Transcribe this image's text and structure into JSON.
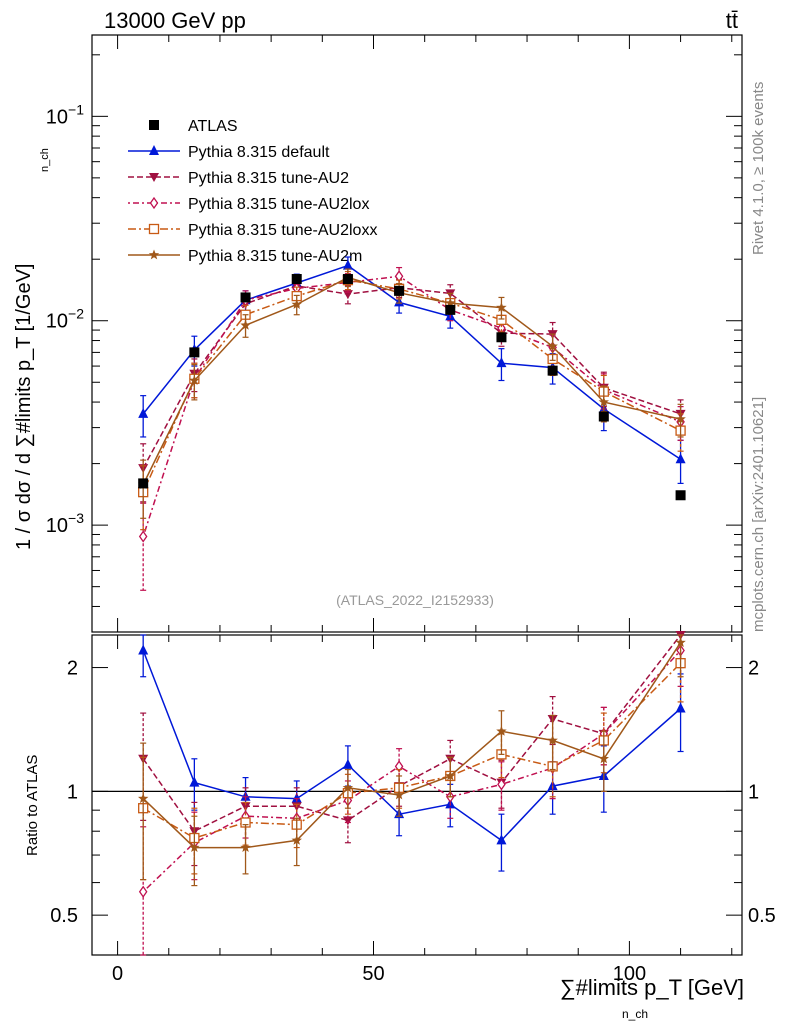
{
  "header": {
    "energy_label": "13000 GeV pp",
    "process_label": "tt̄"
  },
  "side_labels": {
    "rivet": "Rivet 4.1.0, ≥ 100k events",
    "mcplots": "mcplots.cern.ch [arXiv:2401.10621]"
  },
  "analysis_label": "(ATLAS_2022_I2152933)",
  "chart_data": {
    "type": "line",
    "title": "",
    "ylabel_main": "1 / σ dσ / d ∑#limits p_T [1/GeV]",
    "ylabel_ratio": "Ratio to ATLAS",
    "xlabel": "∑#limits p_T [GeV]",
    "xlabel_sub": "n_ch",
    "ylabel_sub": "n_ch",
    "xlim": [
      -5,
      122
    ],
    "ylim_main": [
      0.0003,
      0.25
    ],
    "ylim_ratio": [
      0.4,
      2.4
    ],
    "yscale_main": "log",
    "x_ticks": [
      0,
      50,
      100
    ],
    "x_tick_labels": [
      "0",
      "50",
      "100"
    ],
    "y_main_ticks": [
      0.001,
      0.01,
      0.1
    ],
    "y_main_tick_labels": [
      "10−3",
      "10−2",
      "10−1"
    ],
    "y_ratio_ticks": [
      0.5,
      1,
      2
    ],
    "y_ratio_tick_labels": [
      "0.5",
      "1",
      "2"
    ],
    "x": [
      5,
      15,
      25,
      35,
      45,
      55,
      65,
      75,
      85,
      95,
      110
    ],
    "legend_position": "top-left",
    "data": {
      "name": "ATLAS",
      "values": [
        0.0016,
        0.007,
        0.013,
        0.016,
        0.016,
        0.014,
        0.0113,
        0.0083,
        0.0057,
        0.0034,
        0.0014
      ],
      "color": "#000000"
    },
    "series": [
      {
        "name": "Pythia 8.315 default",
        "color": "#0018d8",
        "marker": "triangle-up",
        "dash": "",
        "values": [
          0.0035,
          0.0072,
          0.0126,
          0.0153,
          0.0186,
          0.0123,
          0.0105,
          0.0062,
          0.0059,
          0.0037,
          0.0021
        ],
        "errors": [
          0.0008,
          0.0012,
          0.0014,
          0.0016,
          0.0019,
          0.0014,
          0.0013,
          0.0011,
          0.001,
          0.0008,
          0.0005
        ],
        "ratio": [
          2.2,
          1.05,
          0.97,
          0.96,
          1.16,
          0.88,
          0.93,
          0.76,
          1.03,
          1.09,
          1.59
        ],
        "ratio_err": [
          0.3,
          0.15,
          0.11,
          0.1,
          0.13,
          0.1,
          0.11,
          0.12,
          0.15,
          0.2,
          0.34
        ]
      },
      {
        "name": "Pythia 8.315 tune-AU2",
        "color": "#a01040",
        "marker": "triangle-down",
        "dash": "6,3",
        "values": [
          0.0019,
          0.0055,
          0.0121,
          0.0148,
          0.0135,
          0.0145,
          0.0136,
          0.0087,
          0.0086,
          0.0047,
          0.0035
        ],
        "errors": [
          0.0006,
          0.001,
          0.0013,
          0.0015,
          0.0014,
          0.0015,
          0.0014,
          0.0012,
          0.0012,
          0.0009,
          0.0006
        ],
        "ratio": [
          1.2,
          0.8,
          0.92,
          0.92,
          0.85,
          1.03,
          1.2,
          1.05,
          1.5,
          1.38,
          2.4
        ],
        "ratio_err": [
          0.35,
          0.14,
          0.1,
          0.1,
          0.1,
          0.11,
          0.13,
          0.14,
          0.2,
          0.22,
          0.4
        ]
      },
      {
        "name": "Pythia 8.315 tune-AU2lox",
        "color": "#c01050",
        "marker": "diamond-open",
        "dash": "2,3,6,3",
        "values": [
          0.00088,
          0.0052,
          0.0126,
          0.0144,
          0.0154,
          0.0165,
          0.0113,
          0.0092,
          0.0074,
          0.0046,
          0.0032
        ],
        "errors": [
          0.0004,
          0.001,
          0.0014,
          0.0015,
          0.0016,
          0.0017,
          0.0013,
          0.0012,
          0.0011,
          0.0009,
          0.0006
        ],
        "ratio": [
          0.57,
          0.75,
          0.87,
          0.86,
          0.95,
          1.15,
          0.97,
          1.04,
          1.14,
          1.38,
          2.2
        ],
        "ratio_err": [
          0.25,
          0.14,
          0.1,
          0.1,
          0.11,
          0.12,
          0.11,
          0.14,
          0.18,
          0.22,
          0.4
        ]
      },
      {
        "name": "Pythia 8.315 tune-AU2loxx",
        "color": "#c85a14",
        "marker": "square-open",
        "dash": "8,3,2,3",
        "values": [
          0.00145,
          0.0052,
          0.0107,
          0.0132,
          0.0158,
          0.0143,
          0.0122,
          0.0101,
          0.0065,
          0.0045,
          0.0029
        ],
        "errors": [
          0.0005,
          0.001,
          0.0012,
          0.0014,
          0.0016,
          0.0015,
          0.0014,
          0.0013,
          0.0011,
          0.0009,
          0.0006
        ],
        "ratio": [
          0.91,
          0.77,
          0.84,
          0.83,
          0.99,
          1.02,
          1.09,
          1.23,
          1.15,
          1.33,
          2.05
        ],
        "ratio_err": [
          0.3,
          0.14,
          0.1,
          0.1,
          0.11,
          0.11,
          0.12,
          0.15,
          0.18,
          0.22,
          0.4
        ]
      },
      {
        "name": "Pythia 8.315 tune-AU2m",
        "color": "#a0581a",
        "marker": "star",
        "dash": "",
        "values": [
          0.00158,
          0.0051,
          0.0095,
          0.012,
          0.0163,
          0.0137,
          0.0122,
          0.0116,
          0.0075,
          0.004,
          0.0033
        ],
        "errors": [
          0.0005,
          0.001,
          0.0012,
          0.0013,
          0.0016,
          0.0015,
          0.0014,
          0.0014,
          0.0011,
          0.0008,
          0.0006
        ],
        "ratio": [
          0.96,
          0.73,
          0.73,
          0.76,
          1.02,
          0.98,
          1.09,
          1.4,
          1.33,
          1.2,
          2.3
        ],
        "ratio_err": [
          0.35,
          0.14,
          0.1,
          0.1,
          0.11,
          0.11,
          0.12,
          0.17,
          0.2,
          0.2,
          0.4
        ]
      }
    ]
  }
}
